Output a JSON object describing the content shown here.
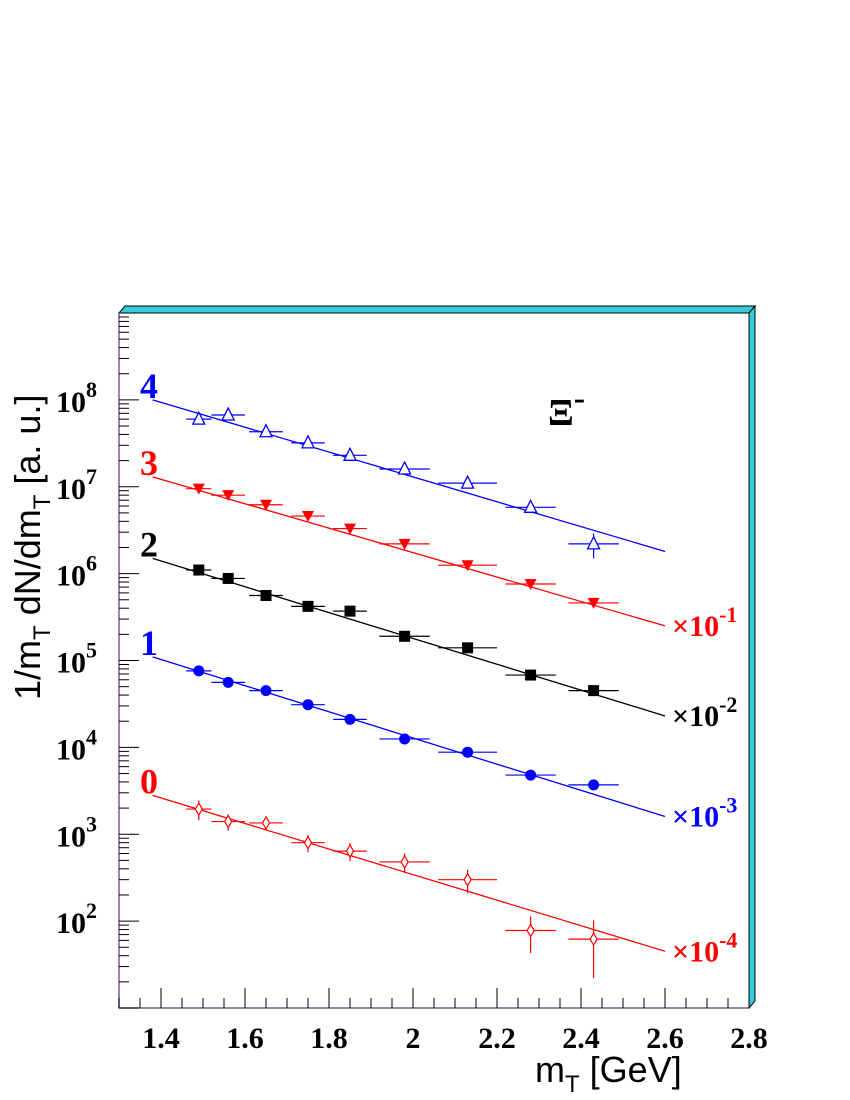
{
  "chart_data": {
    "type": "scatter",
    "title": "",
    "annotation": "Ξ-",
    "xlabel": "m_T   [GeV]",
    "ylabel": "1/m_T dN/dm_T  [a. u.]",
    "xlim": [
      1.3,
      2.8
    ],
    "ylim": [
      10,
      1000000000
    ],
    "y_scale": "log",
    "grid": false,
    "x_ticks": [
      "1.4",
      "1.6",
      "1.8",
      "2",
      "2.2",
      "2.4",
      "2.6",
      "2.8"
    ],
    "y_ticks": [
      "10^2",
      "10^3",
      "10^4",
      "10^5",
      "10^6",
      "10^7",
      "10^8"
    ],
    "frame_color": "#33ccdd",
    "series": [
      {
        "name": "4",
        "scale_label": "",
        "color": "#0000ff",
        "marker": "open-triangle-up",
        "x": [
          1.49,
          1.56,
          1.65,
          1.75,
          1.85,
          1.98,
          2.13,
          2.28,
          2.43
        ],
        "y": [
          60000000,
          67000000,
          43000000,
          32000000,
          23000000,
          16000000,
          11000000,
          5800000,
          2200000
        ],
        "xerr": [
          0.03,
          0.04,
          0.04,
          0.04,
          0.04,
          0.06,
          0.07,
          0.06,
          0.06
        ],
        "yerr": [
          0,
          0,
          0,
          0,
          0,
          0,
          0,
          0,
          700000
        ],
        "fit": {
          "x": [
            1.38,
            2.6
          ],
          "y": [
            100000000,
            1800000
          ]
        }
      },
      {
        "name": "3",
        "scale_label": "×10-1",
        "color": "#ff0000",
        "marker": "filled-triangle-down",
        "x": [
          1.49,
          1.56,
          1.65,
          1.75,
          1.85,
          1.98,
          2.13,
          2.28,
          2.43
        ],
        "y": [
          9500000,
          8000000,
          6200000,
          4600000,
          3300000,
          2200000,
          1250000,
          760000,
          460000
        ],
        "xerr": [
          0.03,
          0.04,
          0.04,
          0.04,
          0.04,
          0.06,
          0.07,
          0.06,
          0.06
        ],
        "yerr": [
          0,
          0,
          0,
          0,
          0,
          0,
          0,
          0,
          0
        ],
        "fit": {
          "x": [
            1.38,
            2.6
          ],
          "y": [
            13000000,
            250000
          ]
        }
      },
      {
        "name": "2",
        "scale_label": "×10-2",
        "color": "#000000",
        "marker": "filled-square",
        "x": [
          1.49,
          1.56,
          1.65,
          1.75,
          1.85,
          1.98,
          2.13,
          2.28,
          2.43
        ],
        "y": [
          1100000,
          880000,
          560000,
          420000,
          370000,
          190000,
          140000,
          68000,
          45000
        ],
        "xerr": [
          0.03,
          0.04,
          0.04,
          0.04,
          0.04,
          0.06,
          0.07,
          0.06,
          0.06
        ],
        "yerr": [
          0,
          0,
          0,
          0,
          0,
          0,
          0,
          0,
          0
        ],
        "fit": {
          "x": [
            1.38,
            2.6
          ],
          "y": [
            1500000,
            23000
          ]
        }
      },
      {
        "name": "1",
        "scale_label": "×10-3",
        "color": "#0000ff",
        "marker": "filled-circle",
        "x": [
          1.49,
          1.56,
          1.65,
          1.75,
          1.85,
          1.98,
          2.13,
          2.28,
          2.43
        ],
        "y": [
          76000,
          56000,
          45000,
          31000,
          21000,
          12500,
          8800,
          4800,
          3700
        ],
        "xerr": [
          0.03,
          0.04,
          0.04,
          0.04,
          0.04,
          0.06,
          0.07,
          0.06,
          0.06
        ],
        "yerr": [
          0,
          0,
          0,
          0,
          0,
          0,
          0,
          0,
          0
        ],
        "fit": {
          "x": [
            1.38,
            2.6
          ],
          "y": [
            110000,
            1600
          ]
        }
      },
      {
        "name": "0",
        "scale_label": "×10-4",
        "color": "#ff0000",
        "marker": "open-diamond",
        "x": [
          1.49,
          1.56,
          1.65,
          1.75,
          1.85,
          1.98,
          2.13,
          2.28,
          2.43
        ],
        "y": [
          1950,
          1400,
          1350,
          800,
          640,
          480,
          300,
          78,
          62
        ],
        "xerr": [
          0.03,
          0.04,
          0.04,
          0.04,
          0.04,
          0.06,
          0.07,
          0.06,
          0.06
        ],
        "yerr": [
          500,
          300,
          250,
          180,
          150,
          120,
          90,
          35,
          40
        ],
        "fit": {
          "x": [
            1.38,
            2.6
          ],
          "y": [
            2800,
            45
          ]
        }
      }
    ]
  }
}
